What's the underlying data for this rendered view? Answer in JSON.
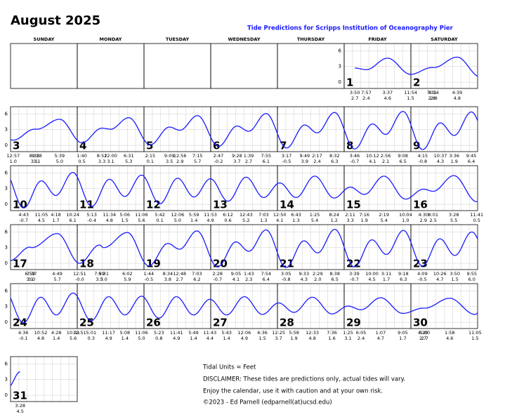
{
  "title": "August 2025",
  "subtitle": "Tide Predictions for Scripps Institution of Oceanography Pier",
  "weekdays": [
    "SUNDAY",
    "MONDAY",
    "TUESDAY",
    "WEDNESDAY",
    "THURSDAY",
    "FRIDAY",
    "SATURDAY"
  ],
  "ylim": [
    -1.2,
    7.4
  ],
  "yticks": [
    0,
    3,
    6
  ],
  "curve_color": "#1a1aff",
  "grid": true,
  "days": [
    {
      "day": 1,
      "tides": [
        {
          "time": "3:50",
          "height": "2.7"
        },
        {
          "time": "7:57",
          "height": "2.4"
        },
        {
          "time": "3:37",
          "height": "4.6"
        },
        {
          "time": "11:54",
          "height": "1.5"
        }
      ]
    },
    {
      "day": 2,
      "tides": [
        {
          "time": "7:31",
          "height": "2.8"
        },
        {
          "time": "8:14",
          "height": "2.8"
        },
        {
          "time": "4:39",
          "height": "4.8"
        }
      ]
    },
    {
      "day": 3,
      "tides": [
        {
          "time": "12:57",
          "height": "1.0"
        },
        {
          "time": "8:35",
          "height": "3.1"
        },
        {
          "time": "9:28",
          "height": "3.1"
        },
        {
          "time": "5:39",
          "height": "5.0"
        }
      ]
    },
    {
      "day": 4,
      "tides": [
        {
          "time": "1:40",
          "height": "0.5"
        },
        {
          "time": "8:52",
          "height": "3.3"
        },
        {
          "time": "12:00",
          "height": "3.1"
        },
        {
          "time": "6:31",
          "height": "5.3"
        }
      ]
    },
    {
      "day": 5,
      "tides": [
        {
          "time": "2:15",
          "height": "0.1"
        },
        {
          "time": "9:09",
          "height": "3.5"
        },
        {
          "time": "12:56",
          "height": "2.9"
        },
        {
          "time": "7:15",
          "height": "5.7"
        }
      ]
    },
    {
      "day": 6,
      "tides": [
        {
          "time": "2:47",
          "height": "-0.2"
        },
        {
          "time": "9:28",
          "height": "3.7"
        },
        {
          "time": "1:39",
          "height": "2.7"
        },
        {
          "time": "7:55",
          "height": "6.1"
        }
      ]
    },
    {
      "day": 7,
      "tides": [
        {
          "time": "3:17",
          "height": "-0.5"
        },
        {
          "time": "9:49",
          "height": "3.9"
        },
        {
          "time": "2:17",
          "height": "2.4"
        },
        {
          "time": "8:32",
          "height": "6.3"
        }
      ]
    },
    {
      "day": 8,
      "tides": [
        {
          "time": "3:46",
          "height": "-0.7"
        },
        {
          "time": "10:12",
          "height": "4.1"
        },
        {
          "time": "2:56",
          "height": "2.1"
        },
        {
          "time": "9:08",
          "height": "6.5"
        }
      ]
    },
    {
      "day": 9,
      "tides": [
        {
          "time": "4:15",
          "height": "-0.8"
        },
        {
          "time": "10:37",
          "height": "4.3"
        },
        {
          "time": "3:36",
          "height": "1.9"
        },
        {
          "time": "9:45",
          "height": "6.4"
        }
      ]
    },
    {
      "day": 10,
      "tides": [
        {
          "time": "4:43",
          "height": "-0.7"
        },
        {
          "time": "11:05",
          "height": "4.5"
        },
        {
          "time": "4:18",
          "height": "1.7"
        },
        {
          "time": "10:24",
          "height": "6.1"
        }
      ]
    },
    {
      "day": 11,
      "tides": [
        {
          "time": "5:13",
          "height": "-0.4"
        },
        {
          "time": "11:34",
          "height": "4.8"
        },
        {
          "time": "5:06",
          "height": "1.5"
        },
        {
          "time": "11:06",
          "height": "5.6"
        }
      ]
    },
    {
      "day": 12,
      "tides": [
        {
          "time": "5:42",
          "height": "0.1"
        },
        {
          "time": "12:06",
          "height": "5.0"
        },
        {
          "time": "5:59",
          "height": "1.4"
        },
        {
          "time": "11:53",
          "height": "4.9"
        }
      ]
    },
    {
      "day": 13,
      "tides": [
        {
          "time": "6:12",
          "height": "0.6"
        },
        {
          "time": "12:43",
          "height": "5.2"
        },
        {
          "time": "7:03",
          "height": "1.3"
        }
      ]
    },
    {
      "day": 14,
      "tides": [
        {
          "time": "12:50",
          "height": "4.1"
        },
        {
          "time": "6:43",
          "height": "1.3"
        },
        {
          "time": "1:25",
          "height": "5.4"
        },
        {
          "time": "8:24",
          "height": "1.2"
        }
      ]
    },
    {
      "day": 15,
      "tides": [
        {
          "time": "2:11",
          "height": "3.3"
        },
        {
          "time": "7:16",
          "height": "1.9"
        },
        {
          "time": "2:19",
          "height": "5.4"
        },
        {
          "time": "10:04",
          "height": "1.0"
        }
      ]
    },
    {
      "day": 16,
      "tides": [
        {
          "time": "4:30",
          "height": "2.9"
        },
        {
          "time": "8:01",
          "height": "2.5"
        },
        {
          "time": "3:28",
          "height": "5.5"
        },
        {
          "time": "11:41",
          "height": "0.5"
        }
      ]
    },
    {
      "day": 17,
      "tides": [
        {
          "time": "6:59",
          "height": "3.1"
        },
        {
          "time": "7:37",
          "height": "3.0"
        },
        {
          "time": "4:49",
          "height": "5.7"
        }
      ]
    },
    {
      "day": 18,
      "tides": [
        {
          "time": "12:51",
          "height": "-0.0"
        },
        {
          "time": "7:59",
          "height": "3.5"
        },
        {
          "time": "9:31",
          "height": "3.0"
        },
        {
          "time": "6:02",
          "height": "5.9"
        }
      ]
    },
    {
      "day": 19,
      "tides": [
        {
          "time": "1:44",
          "height": "-0.5"
        },
        {
          "time": "8:34",
          "height": "3.8"
        },
        {
          "time": "12:48",
          "height": "2.7"
        },
        {
          "time": "7:03",
          "height": "6.2"
        }
      ]
    },
    {
      "day": 20,
      "tides": [
        {
          "time": "2:28",
          "height": "-0.7"
        },
        {
          "time": "9:05",
          "height": "4.1"
        },
        {
          "time": "1:43",
          "height": "2.3"
        },
        {
          "time": "7:54",
          "height": "6.4"
        }
      ]
    },
    {
      "day": 21,
      "tides": [
        {
          "time": "3:05",
          "height": "-0.8"
        },
        {
          "time": "9:33",
          "height": "4.3"
        },
        {
          "time": "2:29",
          "height": "2.0"
        },
        {
          "time": "8:38",
          "height": "6.5"
        }
      ]
    },
    {
      "day": 22,
      "tides": [
        {
          "time": "3:39",
          "height": "-0.7"
        },
        {
          "time": "10:00",
          "height": "4.5"
        },
        {
          "time": "3:11",
          "height": "1.7"
        },
        {
          "time": "9:18",
          "height": "6.3"
        }
      ]
    },
    {
      "day": 23,
      "tides": [
        {
          "time": "4:09",
          "height": "-0.5"
        },
        {
          "time": "10:26",
          "height": "4.7"
        },
        {
          "time": "3:50",
          "height": "1.5"
        },
        {
          "time": "9:55",
          "height": "6.0"
        }
      ]
    },
    {
      "day": 24,
      "tides": [
        {
          "time": "4:36",
          "height": "-0.1"
        },
        {
          "time": "10:52",
          "height": "4.8"
        },
        {
          "time": "4:28",
          "height": "1.4"
        },
        {
          "time": "10:31",
          "height": "5.6"
        }
      ]
    },
    {
      "day": 25,
      "tides": [
        {
          "time": "12:51"
        },
        {
          "time": "5:01",
          "height": "0.3"
        },
        {
          "time": "11:17",
          "height": "4.9"
        },
        {
          "time": "5:08",
          "height": "1.4"
        },
        {
          "time": "11:06",
          "height": "5.0"
        }
      ]
    },
    {
      "day": 26,
      "tides": [
        {
          "time": "5:23",
          "height": "0.8"
        },
        {
          "time": "11:41",
          "height": "4.9"
        },
        {
          "time": "5:49",
          "height": "1.4"
        },
        {
          "time": "11:43",
          "height": "4.4"
        }
      ]
    },
    {
      "day": 27,
      "tides": [
        {
          "time": "5:43",
          "height": "1.4"
        },
        {
          "time": "12:06",
          "height": "4.9"
        },
        {
          "time": "6:36",
          "height": "1.5"
        }
      ]
    },
    {
      "day": 28,
      "tides": [
        {
          "time": "12:25",
          "height": "3.7"
        },
        {
          "time": "5:58",
          "height": "1.9"
        },
        {
          "time": "12:33",
          "height": "4.8"
        },
        {
          "time": "7:36",
          "height": "1.6"
        }
      ]
    },
    {
      "day": 29,
      "tides": [
        {
          "time": "1:25",
          "height": "3.1"
        },
        {
          "time": "6:05",
          "height": "2.4"
        },
        {
          "time": "1:07",
          "height": "4.7"
        },
        {
          "time": "9:05",
          "height": "1.7"
        }
      ]
    },
    {
      "day": 30,
      "tides": [
        {
          "time": "4:20",
          "height": "2.7"
        },
        {
          "time": "5:00",
          "height": "2.7"
        },
        {
          "time": "1:58",
          "height": "4.6"
        },
        {
          "time": "11:05",
          "height": "1.5"
        }
      ]
    },
    {
      "day": 31,
      "tides": [
        {
          "time": "3:28",
          "height": "4.5"
        }
      ]
    }
  ],
  "footer": [
    "Tidal Units = Feet",
    "DISCLAIMER: These tides are predictions only, actual tides will vary.",
    "Enjoy the calendar, use it with caution and at your own risk.",
    "©2023 - Ed Parnell (edparnell(at)ucsd.edu)"
  ]
}
